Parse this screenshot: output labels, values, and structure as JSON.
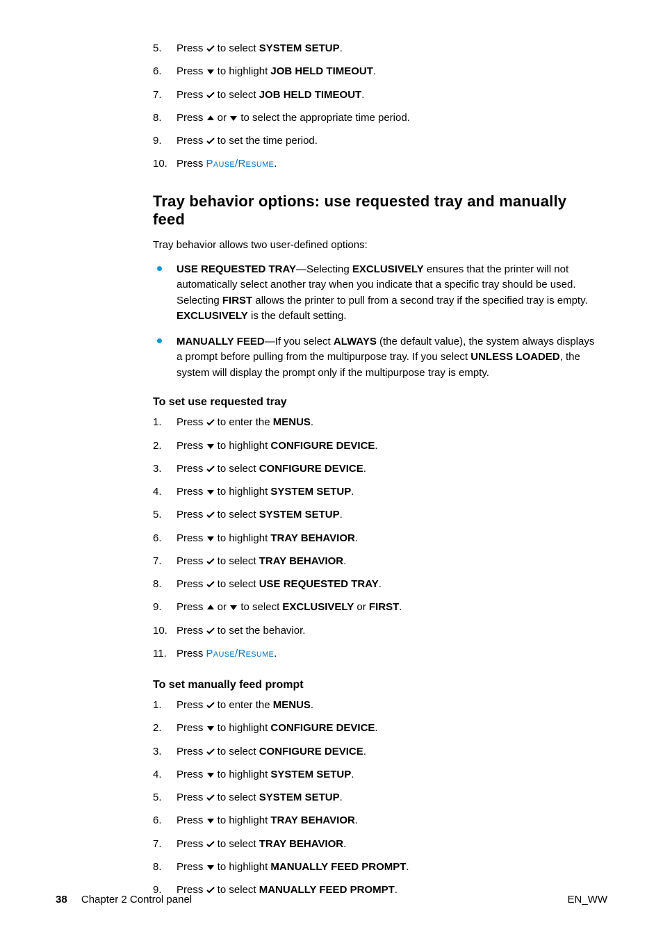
{
  "colors": {
    "text": "#000000",
    "accent_blue": "#0096d6",
    "link_blue": "#0072c6",
    "background": "#ffffff"
  },
  "icons": {
    "check": "✔",
    "down": "▼",
    "up": "▲"
  },
  "top_steps": [
    {
      "n": "5.",
      "pre": "Press ",
      "icon": "check",
      "mid": " to select ",
      "bold": "SYSTEM SETUP",
      "post": "."
    },
    {
      "n": "6.",
      "pre": "Press ",
      "icon": "down",
      "mid": " to highlight ",
      "bold": "JOB HELD TIMEOUT",
      "post": "."
    },
    {
      "n": "7.",
      "pre": "Press ",
      "icon": "check",
      "mid": " to select ",
      "bold": "JOB HELD TIMEOUT",
      "post": "."
    },
    {
      "n": "8.",
      "pre": "Press ",
      "icon": "updown",
      "mid": " to select the appropriate time period.",
      "bold": "",
      "post": ""
    },
    {
      "n": "9.",
      "pre": "Press ",
      "icon": "check",
      "mid": " to set the time period.",
      "bold": "",
      "post": ""
    },
    {
      "n": "10.",
      "pre": "Press ",
      "icon": "none",
      "mid": "",
      "bold": "",
      "post": "",
      "link": "Pause/Resume",
      "linkpost": "."
    }
  ],
  "section_heading": "Tray behavior options: use requested tray and manually feed",
  "intro_para": "Tray behavior allows two user-defined options:",
  "bullets": [
    {
      "b1": "USE REQUESTED TRAY",
      "t1": "—Selecting ",
      "b2": "EXCLUSIVELY",
      "t2": " ensures that the printer will not automatically select another tray when you indicate that a specific tray should be used. Selecting ",
      "b3": "FIRST",
      "t3": " allows the printer to pull from a second tray if the specified tray is empty. ",
      "b4": "EXCLUSIVELY",
      "t4": " is the default setting."
    },
    {
      "b1": "MANUALLY FEED",
      "t1": "—If you select ",
      "b2": "ALWAYS",
      "t2": " (the default value), the system always displays a prompt before pulling from the multipurpose tray. If you select ",
      "b3": "UNLESS LOADED",
      "t3": ", the system will display the prompt only if the multipurpose tray is empty.",
      "b4": "",
      "t4": ""
    }
  ],
  "sub1_heading": "To set use requested tray",
  "sub1_steps": [
    {
      "n": "1.",
      "pre": "Press ",
      "icon": "check",
      "mid": " to enter the ",
      "bold": "MENUS",
      "post": "."
    },
    {
      "n": "2.",
      "pre": "Press ",
      "icon": "down",
      "mid": " to highlight ",
      "bold": "CONFIGURE DEVICE",
      "post": "."
    },
    {
      "n": "3.",
      "pre": "Press ",
      "icon": "check",
      "mid": " to select ",
      "bold": "CONFIGURE DEVICE",
      "post": "."
    },
    {
      "n": "4.",
      "pre": "Press ",
      "icon": "down",
      "mid": " to highlight ",
      "bold": "SYSTEM SETUP",
      "post": "."
    },
    {
      "n": "5.",
      "pre": "Press ",
      "icon": "check",
      "mid": " to select ",
      "bold": "SYSTEM SETUP",
      "post": "."
    },
    {
      "n": "6.",
      "pre": "Press ",
      "icon": "down",
      "mid": " to highlight ",
      "bold": "TRAY BEHAVIOR",
      "post": "."
    },
    {
      "n": "7.",
      "pre": "Press ",
      "icon": "check",
      "mid": " to select ",
      "bold": "TRAY BEHAVIOR",
      "post": "."
    },
    {
      "n": "8.",
      "pre": "Press ",
      "icon": "check",
      "mid": " to select ",
      "bold": "USE REQUESTED TRAY",
      "post": "."
    },
    {
      "n": "9.",
      "pre": "Press ",
      "icon": "updown",
      "mid": " to select ",
      "bold": "EXCLUSIVELY",
      "post": " or ",
      "bold2": "FIRST",
      "post2": "."
    },
    {
      "n": "10.",
      "pre": "Press ",
      "icon": "check",
      "mid": " to set the behavior.",
      "bold": "",
      "post": ""
    },
    {
      "n": "11.",
      "pre": "Press ",
      "icon": "none",
      "mid": "",
      "bold": "",
      "post": "",
      "link": "Pause/Resume",
      "linkpost": "."
    }
  ],
  "sub2_heading": "To set manually feed prompt",
  "sub2_steps": [
    {
      "n": "1.",
      "pre": "Press ",
      "icon": "check",
      "mid": " to enter the ",
      "bold": "MENUS",
      "post": "."
    },
    {
      "n": "2.",
      "pre": "Press ",
      "icon": "down",
      "mid": " to highlight ",
      "bold": "CONFIGURE DEVICE",
      "post": "."
    },
    {
      "n": "3.",
      "pre": "Press ",
      "icon": "check",
      "mid": " to select ",
      "bold": "CONFIGURE DEVICE",
      "post": "."
    },
    {
      "n": "4.",
      "pre": "Press ",
      "icon": "down",
      "mid": " to highlight ",
      "bold": "SYSTEM SETUP",
      "post": "."
    },
    {
      "n": "5.",
      "pre": "Press ",
      "icon": "check",
      "mid": " to select ",
      "bold": "SYSTEM SETUP",
      "post": "."
    },
    {
      "n": "6.",
      "pre": "Press ",
      "icon": "down",
      "mid": " to highlight ",
      "bold": "TRAY BEHAVIOR",
      "post": "."
    },
    {
      "n": "7.",
      "pre": "Press ",
      "icon": "check",
      "mid": " to select ",
      "bold": "TRAY BEHAVIOR",
      "post": "."
    },
    {
      "n": "8.",
      "pre": "Press ",
      "icon": "down",
      "mid": " to highlight ",
      "bold": "MANUALLY FEED PROMPT",
      "post": "."
    },
    {
      "n": "9.",
      "pre": "Press ",
      "icon": "check",
      "mid": " to select ",
      "bold": "MANUALLY FEED PROMPT",
      "post": "."
    }
  ],
  "footer": {
    "page_num": "38",
    "chapter": "Chapter 2 Control panel",
    "right": "EN_WW"
  }
}
